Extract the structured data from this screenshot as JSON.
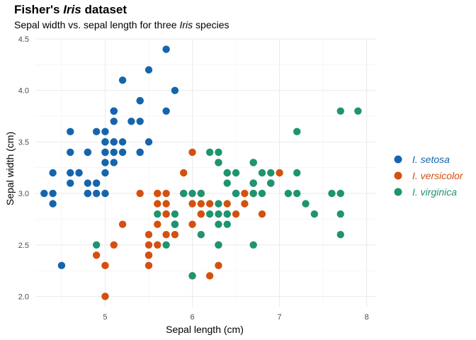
{
  "title": {
    "prefix": "Fisher's ",
    "italic": "Iris",
    "suffix": " dataset"
  },
  "subtitle": {
    "prefix": "Sepal width vs. sepal length for three ",
    "italic": "Iris",
    "suffix": " species"
  },
  "chart_data": {
    "type": "scatter",
    "xlabel": "Sepal length (cm)",
    "ylabel": "Sepal width (cm)",
    "xlim": [
      4.2,
      8.1
    ],
    "ylim": [
      1.9,
      4.5
    ],
    "x_ticks": [
      "5",
      "6",
      "7",
      "8"
    ],
    "y_ticks": [
      "2.0",
      "2.5",
      "3.0",
      "3.5",
      "4.0",
      "4.5"
    ],
    "grid": true,
    "legend_position": "right",
    "series": [
      {
        "name": "I. setosa",
        "color": "#1565ad",
        "points": [
          [
            5.1,
            3.5
          ],
          [
            4.9,
            3.0
          ],
          [
            4.7,
            3.2
          ],
          [
            4.6,
            3.1
          ],
          [
            5.0,
            3.6
          ],
          [
            5.4,
            3.9
          ],
          [
            4.6,
            3.4
          ],
          [
            5.0,
            3.4
          ],
          [
            4.4,
            2.9
          ],
          [
            4.9,
            3.1
          ],
          [
            5.4,
            3.7
          ],
          [
            4.8,
            3.4
          ],
          [
            4.8,
            3.0
          ],
          [
            4.3,
            3.0
          ],
          [
            5.8,
            4.0
          ],
          [
            5.7,
            4.4
          ],
          [
            5.4,
            3.9
          ],
          [
            5.1,
            3.5
          ],
          [
            5.7,
            3.8
          ],
          [
            5.1,
            3.8
          ],
          [
            5.4,
            3.4
          ],
          [
            5.1,
            3.7
          ],
          [
            4.6,
            3.6
          ],
          [
            5.1,
            3.3
          ],
          [
            4.8,
            3.4
          ],
          [
            5.0,
            3.0
          ],
          [
            5.0,
            3.4
          ],
          [
            5.2,
            3.5
          ],
          [
            5.2,
            3.4
          ],
          [
            4.7,
            3.2
          ],
          [
            4.8,
            3.1
          ],
          [
            5.4,
            3.4
          ],
          [
            5.2,
            4.1
          ],
          [
            5.5,
            4.2
          ],
          [
            4.9,
            3.1
          ],
          [
            5.0,
            3.2
          ],
          [
            5.5,
            3.5
          ],
          [
            4.9,
            3.6
          ],
          [
            4.4,
            3.0
          ],
          [
            5.1,
            3.4
          ],
          [
            5.0,
            3.5
          ],
          [
            4.5,
            2.3
          ],
          [
            4.4,
            3.2
          ],
          [
            5.0,
            3.5
          ],
          [
            5.1,
            3.8
          ],
          [
            4.8,
            3.0
          ],
          [
            5.1,
            3.8
          ],
          [
            4.6,
            3.2
          ],
          [
            5.3,
            3.7
          ],
          [
            5.0,
            3.3
          ]
        ]
      },
      {
        "name": "I. versicolor",
        "color": "#d4500f",
        "points": [
          [
            7.0,
            3.2
          ],
          [
            6.4,
            3.2
          ],
          [
            6.9,
            3.1
          ],
          [
            5.5,
            2.3
          ],
          [
            6.5,
            2.8
          ],
          [
            5.7,
            2.8
          ],
          [
            6.3,
            3.3
          ],
          [
            4.9,
            2.4
          ],
          [
            6.6,
            2.9
          ],
          [
            5.2,
            2.7
          ],
          [
            5.0,
            2.0
          ],
          [
            5.9,
            3.0
          ],
          [
            6.0,
            2.2
          ],
          [
            6.1,
            2.9
          ],
          [
            5.6,
            2.9
          ],
          [
            6.7,
            3.1
          ],
          [
            5.6,
            3.0
          ],
          [
            5.8,
            2.7
          ],
          [
            6.2,
            2.2
          ],
          [
            5.6,
            2.5
          ],
          [
            5.9,
            3.2
          ],
          [
            6.1,
            2.8
          ],
          [
            6.3,
            2.5
          ],
          [
            6.1,
            2.8
          ],
          [
            6.4,
            2.9
          ],
          [
            6.6,
            3.0
          ],
          [
            6.8,
            2.8
          ],
          [
            6.7,
            3.0
          ],
          [
            6.0,
            2.9
          ],
          [
            5.7,
            2.6
          ],
          [
            5.5,
            2.4
          ],
          [
            5.5,
            2.4
          ],
          [
            5.8,
            2.7
          ],
          [
            6.0,
            2.7
          ],
          [
            5.4,
            3.0
          ],
          [
            6.0,
            3.4
          ],
          [
            6.7,
            3.1
          ],
          [
            6.3,
            2.3
          ],
          [
            5.6,
            3.0
          ],
          [
            5.5,
            2.5
          ],
          [
            5.5,
            2.6
          ],
          [
            6.1,
            3.0
          ],
          [
            5.8,
            2.6
          ],
          [
            5.0,
            2.3
          ],
          [
            5.6,
            2.7
          ],
          [
            5.7,
            3.0
          ],
          [
            5.7,
            2.9
          ],
          [
            6.2,
            2.9
          ],
          [
            5.1,
            2.5
          ],
          [
            5.7,
            2.8
          ]
        ]
      },
      {
        "name": "I. virginica",
        "color": "#1e9470",
        "points": [
          [
            6.3,
            3.3
          ],
          [
            5.8,
            2.7
          ],
          [
            7.1,
            3.0
          ],
          [
            6.3,
            2.9
          ],
          [
            6.5,
            3.0
          ],
          [
            7.6,
            3.0
          ],
          [
            4.9,
            2.5
          ],
          [
            7.3,
            2.9
          ],
          [
            6.7,
            2.5
          ],
          [
            7.2,
            3.6
          ],
          [
            6.5,
            3.2
          ],
          [
            6.4,
            2.7
          ],
          [
            6.8,
            3.0
          ],
          [
            5.7,
            2.5
          ],
          [
            5.8,
            2.8
          ],
          [
            6.4,
            3.2
          ],
          [
            6.5,
            3.0
          ],
          [
            7.7,
            3.8
          ],
          [
            7.7,
            2.6
          ],
          [
            6.0,
            2.2
          ],
          [
            6.9,
            3.2
          ],
          [
            5.6,
            2.8
          ],
          [
            7.7,
            2.8
          ],
          [
            6.3,
            2.7
          ],
          [
            6.7,
            3.3
          ],
          [
            7.2,
            3.2
          ],
          [
            6.2,
            2.8
          ],
          [
            6.1,
            3.0
          ],
          [
            6.4,
            2.8
          ],
          [
            7.2,
            3.0
          ],
          [
            7.4,
            2.8
          ],
          [
            7.9,
            3.8
          ],
          [
            6.4,
            2.8
          ],
          [
            6.3,
            2.8
          ],
          [
            6.1,
            2.6
          ],
          [
            7.7,
            3.0
          ],
          [
            6.3,
            3.4
          ],
          [
            6.4,
            3.1
          ],
          [
            6.0,
            3.0
          ],
          [
            6.9,
            3.1
          ],
          [
            6.7,
            3.1
          ],
          [
            6.9,
            3.1
          ],
          [
            5.8,
            2.7
          ],
          [
            6.8,
            3.2
          ],
          [
            6.7,
            3.3
          ],
          [
            6.7,
            3.0
          ],
          [
            6.3,
            2.5
          ],
          [
            6.5,
            3.0
          ],
          [
            6.2,
            3.4
          ],
          [
            5.9,
            3.0
          ]
        ]
      }
    ]
  }
}
